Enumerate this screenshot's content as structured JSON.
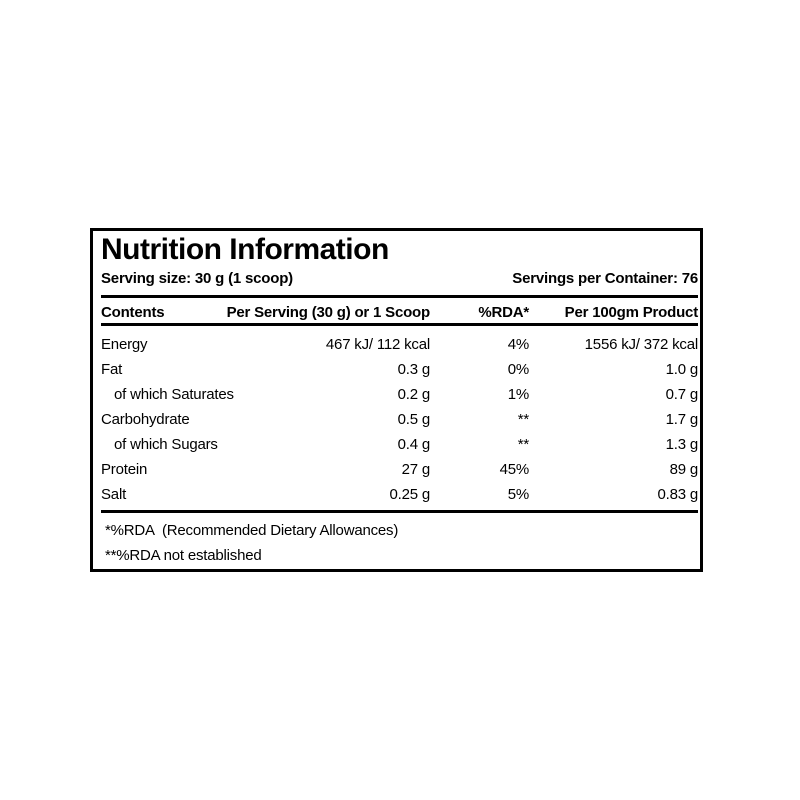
{
  "label": {
    "title": "Nutrition Information",
    "serving_size": "Serving size: 30 g (1 scoop)",
    "servings_per_container": "Servings per Container: 76",
    "columns": [
      "Contents",
      "Per Serving (30 g) or 1 Scoop",
      "%RDA*",
      "Per 100gm Product"
    ],
    "rows": [
      {
        "name": "Energy",
        "indent": false,
        "per_serving": "467 kJ/ 112 kcal",
        "rda": "4%",
        "per_100g": "1556 kJ/ 372 kcal"
      },
      {
        "name": "Fat",
        "indent": false,
        "per_serving": "0.3 g",
        "rda": "0%",
        "per_100g": "1.0 g"
      },
      {
        "name": "of which Saturates",
        "indent": true,
        "per_serving": "0.2 g",
        "rda": "1%",
        "per_100g": "0.7 g"
      },
      {
        "name": "Carbohydrate",
        "indent": false,
        "per_serving": "0.5 g",
        "rda": "**",
        "per_100g": "1.7 g"
      },
      {
        "name": "of which Sugars",
        "indent": true,
        "per_serving": "0.4 g",
        "rda": "**",
        "per_100g": "1.3 g"
      },
      {
        "name": "Protein",
        "indent": false,
        "per_serving": "27 g",
        "rda": "45%",
        "per_100g": "89 g"
      },
      {
        "name": "Salt",
        "indent": false,
        "per_serving": "0.25 g",
        "rda": "5%",
        "per_100g": "0.83 g"
      }
    ],
    "footnotes": [
      "*%RDA  (Recommended Dietary Allowances)",
      "**%RDA not established"
    ],
    "colors": {
      "text": "#000000",
      "background": "#ffffff",
      "border": "#000000"
    }
  }
}
